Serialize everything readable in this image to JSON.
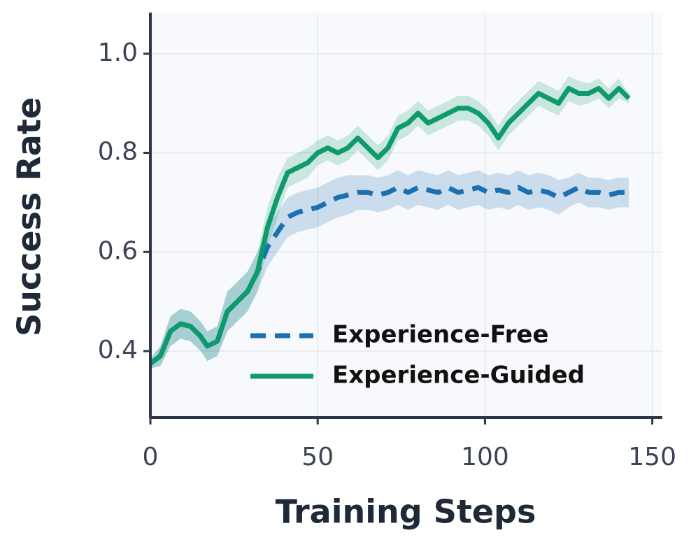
{
  "chart_data": {
    "type": "line",
    "x_label": "Training Steps",
    "y_label": "Success Rate",
    "x": [
      0,
      3,
      6,
      9,
      12,
      15,
      17,
      20,
      23,
      26,
      29,
      32,
      35,
      38,
      41,
      44,
      47,
      50,
      53,
      56,
      59,
      62,
      65,
      68,
      71,
      74,
      77,
      80,
      83,
      86,
      89,
      92,
      95,
      98,
      101,
      104,
      107,
      110,
      113,
      116,
      119,
      122,
      125,
      128,
      131,
      134,
      137,
      140,
      143
    ],
    "series": [
      {
        "name": "Experience-Free",
        "color": "#1a70b0",
        "dash": true,
        "values": [
          0.375,
          0.39,
          0.44,
          0.455,
          0.45,
          0.43,
          0.41,
          0.42,
          0.48,
          0.5,
          0.52,
          0.56,
          0.61,
          0.64,
          0.67,
          0.68,
          0.685,
          0.69,
          0.7,
          0.71,
          0.715,
          0.72,
          0.72,
          0.715,
          0.72,
          0.73,
          0.72,
          0.73,
          0.725,
          0.72,
          0.73,
          0.72,
          0.725,
          0.73,
          0.72,
          0.725,
          0.72,
          0.73,
          0.72,
          0.725,
          0.72,
          0.71,
          0.72,
          0.73,
          0.72,
          0.72,
          0.715,
          0.72,
          0.72
        ],
        "error": [
          0.01,
          0.02,
          0.03,
          0.03,
          0.03,
          0.03,
          0.03,
          0.03,
          0.04,
          0.04,
          0.04,
          0.04,
          0.04,
          0.04,
          0.04,
          0.04,
          0.04,
          0.04,
          0.04,
          0.04,
          0.04,
          0.035,
          0.035,
          0.035,
          0.035,
          0.035,
          0.035,
          0.035,
          0.035,
          0.035,
          0.035,
          0.035,
          0.035,
          0.035,
          0.035,
          0.035,
          0.035,
          0.035,
          0.035,
          0.035,
          0.035,
          0.035,
          0.03,
          0.03,
          0.03,
          0.03,
          0.03,
          0.03,
          0.03
        ]
      },
      {
        "name": "Experience-Guided",
        "color": "#0e9a6c",
        "dash": false,
        "values": [
          0.375,
          0.39,
          0.44,
          0.455,
          0.45,
          0.43,
          0.41,
          0.42,
          0.48,
          0.5,
          0.52,
          0.56,
          0.65,
          0.71,
          0.76,
          0.77,
          0.78,
          0.8,
          0.81,
          0.8,
          0.81,
          0.83,
          0.81,
          0.79,
          0.81,
          0.85,
          0.86,
          0.88,
          0.86,
          0.87,
          0.88,
          0.89,
          0.89,
          0.88,
          0.86,
          0.83,
          0.86,
          0.88,
          0.9,
          0.92,
          0.91,
          0.9,
          0.93,
          0.92,
          0.92,
          0.93,
          0.91,
          0.93,
          0.91
        ],
        "error": [
          0.01,
          0.02,
          0.03,
          0.03,
          0.03,
          0.03,
          0.03,
          0.03,
          0.04,
          0.04,
          0.04,
          0.04,
          0.04,
          0.04,
          0.03,
          0.03,
          0.03,
          0.025,
          0.025,
          0.025,
          0.025,
          0.025,
          0.025,
          0.025,
          0.025,
          0.025,
          0.025,
          0.025,
          0.025,
          0.025,
          0.025,
          0.025,
          0.025,
          0.025,
          0.025,
          0.025,
          0.025,
          0.025,
          0.025,
          0.025,
          0.025,
          0.025,
          0.025,
          0.025,
          0.02,
          0.02,
          0.02,
          0.02,
          0.01
        ]
      }
    ],
    "xlim": [
      0,
      153
    ],
    "ylim": [
      0.266,
      1.083
    ],
    "xticks": [
      0,
      50,
      100,
      150
    ],
    "yticks": [
      0.4,
      0.6,
      0.8,
      {
        "value": 1,
        "label": "1.0"
      }
    ],
    "grid": true,
    "legend": "lower right"
  }
}
